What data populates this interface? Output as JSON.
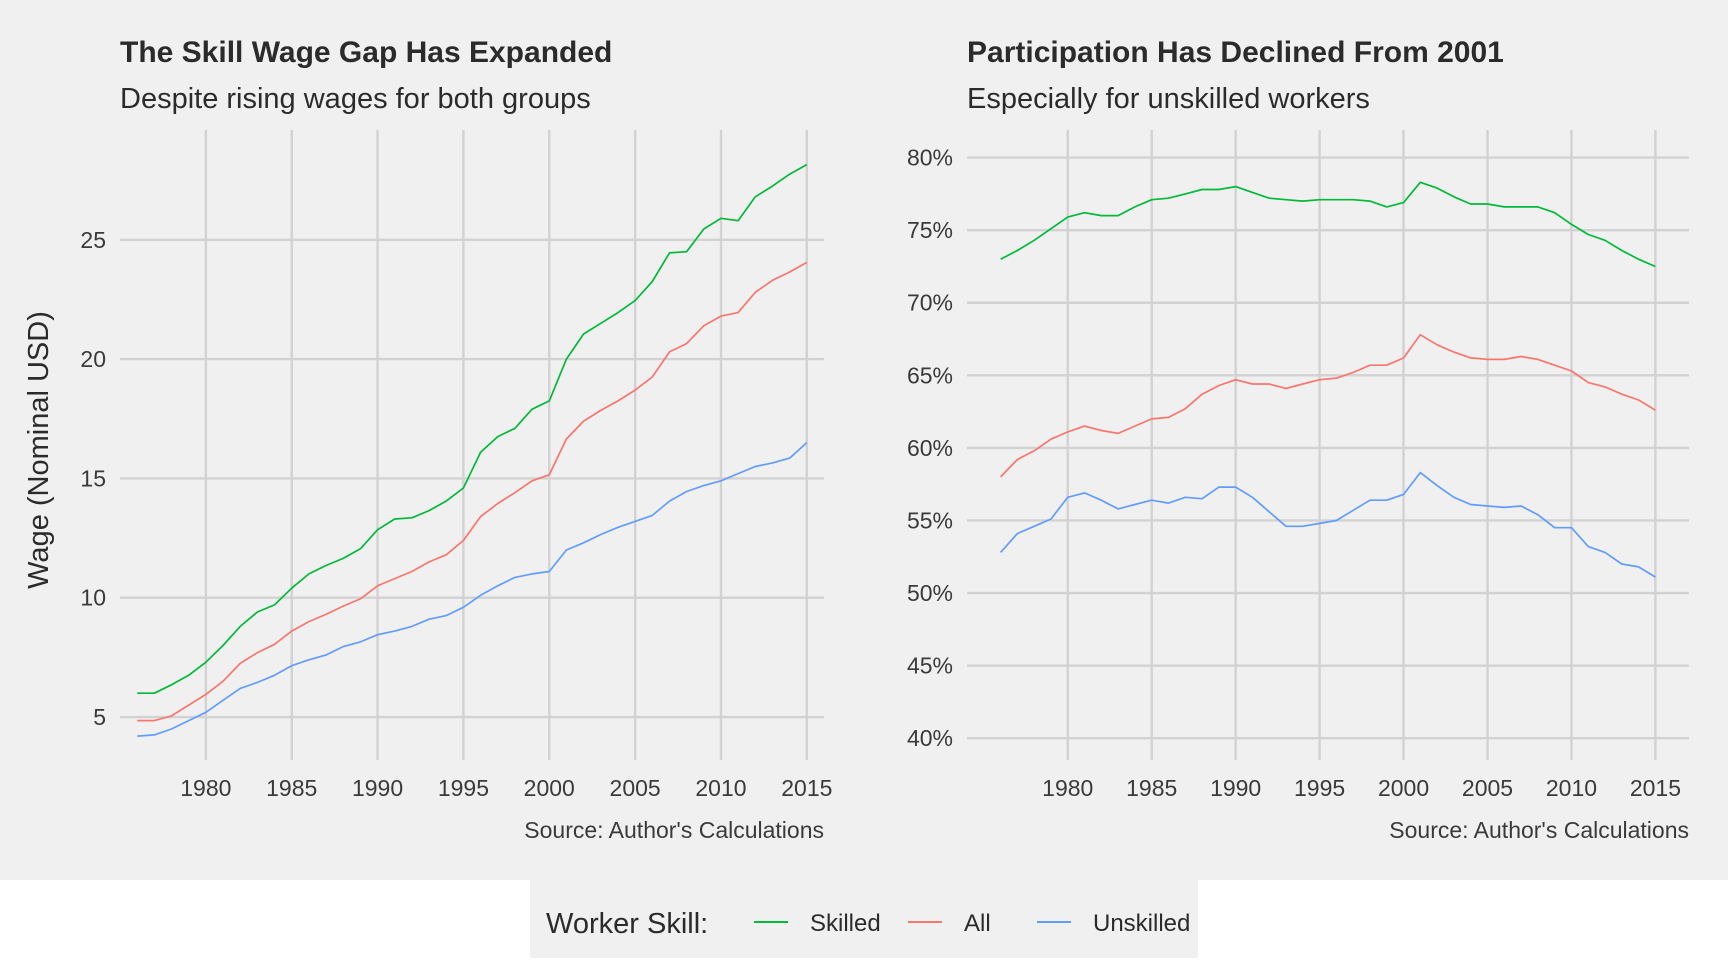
{
  "chart_data": [
    {
      "type": "line",
      "title": "The Skill Wage Gap Has Expanded",
      "subtitle": "Despite rising wages for both groups",
      "ylabel": "Wage (Nominal USD)",
      "xlabel": "",
      "caption": "Source: Author's Calculations",
      "grid": true,
      "xlim": [
        1975,
        2016
      ],
      "ylim": [
        3.2,
        29.6
      ],
      "x_ticks": [
        1980,
        1985,
        1990,
        1995,
        2000,
        2005,
        2010,
        2015
      ],
      "y_ticks": [
        5,
        10,
        15,
        20,
        25
      ],
      "y_tick_labels": [
        "5",
        "10",
        "15",
        "20",
        "25"
      ],
      "x_tick_labels": [
        "1980",
        "1985",
        "1990",
        "1995",
        "2000",
        "2005",
        "2010",
        "2015"
      ],
      "x": [
        1976,
        1977,
        1978,
        1979,
        1980,
        1981,
        1982,
        1983,
        1984,
        1985,
        1986,
        1987,
        1988,
        1989,
        1990,
        1991,
        1992,
        1993,
        1994,
        1995,
        1996,
        1997,
        1998,
        1999,
        2000,
        2001,
        2002,
        2003,
        2004,
        2005,
        2006,
        2007,
        2008,
        2009,
        2010,
        2011,
        2012,
        2013,
        2014,
        2015
      ],
      "series": [
        {
          "name": "Skilled",
          "color": "#00ba38",
          "values": [
            6.0,
            6.0,
            6.35,
            6.75,
            7.3,
            8.0,
            8.8,
            9.4,
            9.7,
            10.4,
            11.0,
            11.35,
            11.65,
            12.05,
            12.85,
            13.3,
            13.35,
            13.65,
            14.05,
            14.6,
            16.1,
            16.75,
            17.1,
            17.9,
            18.25,
            20.0,
            21.05,
            21.5,
            21.95,
            22.45,
            23.25,
            24.45,
            24.5,
            25.45,
            25.9,
            25.8,
            26.8,
            27.25,
            27.75,
            28.15
          ]
        },
        {
          "name": "All",
          "color": "#f8766d",
          "values": [
            4.85,
            4.85,
            5.05,
            5.5,
            5.95,
            6.5,
            7.25,
            7.7,
            8.05,
            8.6,
            9.0,
            9.3,
            9.65,
            9.95,
            10.5,
            10.8,
            11.1,
            11.5,
            11.8,
            12.4,
            13.4,
            13.95,
            14.4,
            14.9,
            15.15,
            16.65,
            17.4,
            17.85,
            18.25,
            18.7,
            19.25,
            20.3,
            20.65,
            21.4,
            21.8,
            21.95,
            22.8,
            23.3,
            23.65,
            24.05
          ]
        },
        {
          "name": "Unskilled",
          "color": "#619cff",
          "values": [
            4.2,
            4.25,
            4.5,
            4.85,
            5.2,
            5.7,
            6.2,
            6.45,
            6.75,
            7.15,
            7.4,
            7.6,
            7.95,
            8.15,
            8.45,
            8.6,
            8.8,
            9.1,
            9.25,
            9.6,
            10.1,
            10.5,
            10.85,
            11.0,
            11.1,
            12.0,
            12.3,
            12.65,
            12.95,
            13.2,
            13.45,
            14.05,
            14.45,
            14.7,
            14.9,
            15.2,
            15.5,
            15.65,
            15.85,
            16.5
          ]
        }
      ]
    },
    {
      "type": "line",
      "title": "Participation Has Declined From 2001",
      "subtitle": "Especially for unskilled workers",
      "ylabel": "",
      "xlabel": "",
      "caption": "Source: Author's Calculations",
      "grid": true,
      "xlim": [
        1974,
        2017
      ],
      "ylim": [
        38.5,
        81.9
      ],
      "x_ticks": [
        1980,
        1985,
        1990,
        1995,
        2000,
        2005,
        2010,
        2015
      ],
      "y_ticks": [
        40,
        45,
        50,
        55,
        60,
        65,
        70,
        75,
        80
      ],
      "y_tick_labels": [
        "40%",
        "45%",
        "50%",
        "55%",
        "60%",
        "65%",
        "70%",
        "75%",
        "80%"
      ],
      "x_tick_labels": [
        "1980",
        "1985",
        "1990",
        "1995",
        "2000",
        "2005",
        "2010",
        "2015"
      ],
      "x": [
        1976,
        1977,
        1978,
        1979,
        1980,
        1981,
        1982,
        1983,
        1984,
        1985,
        1986,
        1987,
        1988,
        1989,
        1990,
        1991,
        1992,
        1993,
        1994,
        1995,
        1996,
        1997,
        1998,
        1999,
        2000,
        2001,
        2002,
        2003,
        2004,
        2005,
        2006,
        2007,
        2008,
        2009,
        2010,
        2011,
        2012,
        2013,
        2014,
        2015
      ],
      "series": [
        {
          "name": "Skilled",
          "color": "#00ba38",
          "values": [
            73.0,
            73.6,
            74.3,
            75.1,
            75.9,
            76.2,
            76.0,
            76.0,
            76.6,
            77.1,
            77.2,
            77.5,
            77.8,
            77.8,
            78.0,
            77.6,
            77.2,
            77.1,
            77.0,
            77.1,
            77.1,
            77.1,
            77.0,
            76.6,
            76.9,
            78.3,
            77.9,
            77.3,
            76.8,
            76.8,
            76.6,
            76.6,
            76.6,
            76.2,
            75.4,
            74.7,
            74.3,
            73.6,
            73.0,
            72.5
          ]
        },
        {
          "name": "All",
          "color": "#f8766d",
          "values": [
            58.0,
            59.2,
            59.8,
            60.6,
            61.1,
            61.5,
            61.2,
            61.0,
            61.5,
            62.0,
            62.1,
            62.7,
            63.7,
            64.3,
            64.7,
            64.4,
            64.4,
            64.1,
            64.4,
            64.7,
            64.8,
            65.2,
            65.7,
            65.7,
            66.2,
            67.8,
            67.1,
            66.6,
            66.2,
            66.1,
            66.1,
            66.3,
            66.1,
            65.7,
            65.3,
            64.5,
            64.2,
            63.7,
            63.3,
            62.6
          ]
        },
        {
          "name": "Unskilled",
          "color": "#619cff",
          "values": [
            52.8,
            54.1,
            54.6,
            55.1,
            56.6,
            56.9,
            56.4,
            55.8,
            56.1,
            56.4,
            56.2,
            56.6,
            56.5,
            57.3,
            57.3,
            56.6,
            55.6,
            54.6,
            54.6,
            54.8,
            55.0,
            55.7,
            56.4,
            56.4,
            56.8,
            58.3,
            57.4,
            56.6,
            56.1,
            56.0,
            55.9,
            56.0,
            55.4,
            54.5,
            54.5,
            53.2,
            52.8,
            52.0,
            51.8,
            51.1
          ]
        }
      ]
    }
  ],
  "legend": {
    "title": "Worker Skill:",
    "placement": "bottom",
    "items": [
      {
        "label": "Skilled",
        "color": "#00ba38"
      },
      {
        "label": "All",
        "color": "#f8766d"
      },
      {
        "label": "Unskilled",
        "color": "#619cff"
      }
    ]
  }
}
